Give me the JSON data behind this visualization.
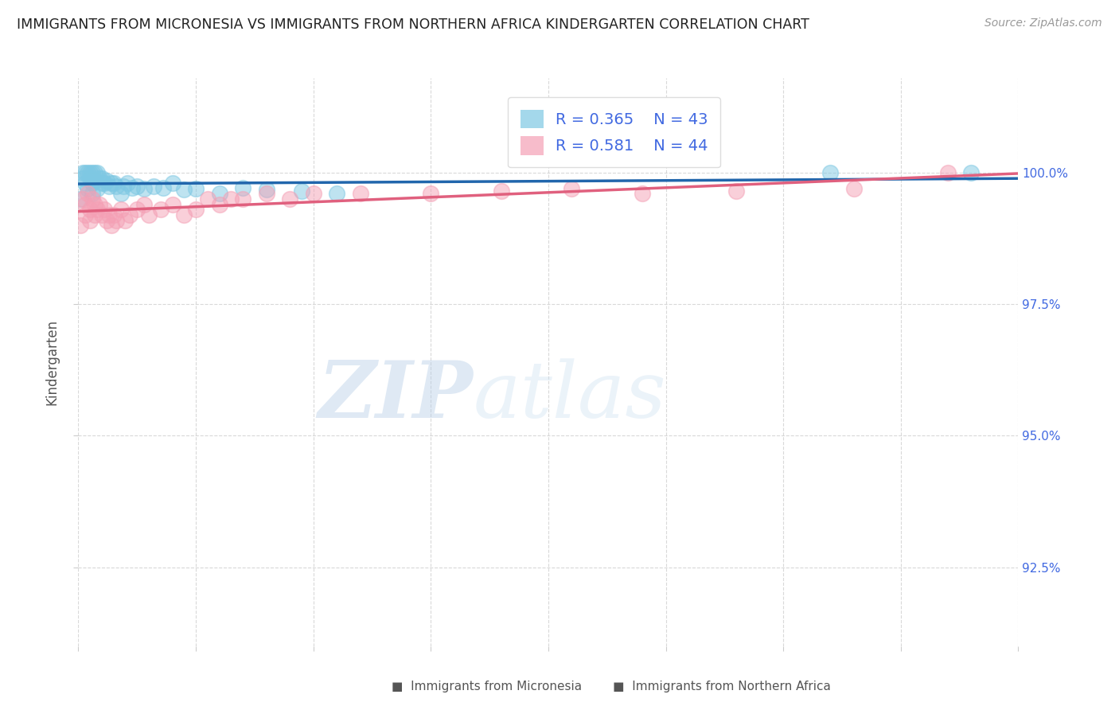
{
  "title": "IMMIGRANTS FROM MICRONESIA VS IMMIGRANTS FROM NORTHERN AFRICA KINDERGARTEN CORRELATION CHART",
  "source": "Source: ZipAtlas.com",
  "ylabel": "Kindergarten",
  "y_tick_labels": [
    "100.0%",
    "97.5%",
    "95.0%",
    "92.5%"
  ],
  "y_tick_values": [
    1.0,
    0.975,
    0.95,
    0.925
  ],
  "x_min": 0.0,
  "x_max": 0.4,
  "y_min": 0.91,
  "y_max": 1.018,
  "r_micronesia": 0.365,
  "n_micronesia": 43,
  "r_n_africa": 0.581,
  "n_n_africa": 44,
  "color_micronesia": "#7ec8e3",
  "color_n_africa": "#f4a0b5",
  "line_color_micronesia": "#2166ac",
  "line_color_n_africa": "#e0607e",
  "legend_label_micronesia": "Immigrants from Micronesia",
  "legend_label_n_africa": "Immigrants from Northern Africa",
  "background_color": "#ffffff",
  "grid_color": "#d0d0d0",
  "right_axis_color": "#4169e1",
  "watermark_zip": "ZIP",
  "watermark_atlas": "atlas",
  "micronesia_x": [
    0.001,
    0.002,
    0.002,
    0.003,
    0.003,
    0.004,
    0.004,
    0.005,
    0.005,
    0.006,
    0.006,
    0.006,
    0.007,
    0.007,
    0.008,
    0.008,
    0.009,
    0.01,
    0.01,
    0.011,
    0.012,
    0.013,
    0.014,
    0.015,
    0.016,
    0.018,
    0.019,
    0.021,
    0.023,
    0.025,
    0.028,
    0.032,
    0.036,
    0.04,
    0.045,
    0.05,
    0.06,
    0.07,
    0.08,
    0.095,
    0.11,
    0.32,
    0.38
  ],
  "micronesia_y": [
    0.995,
    1.0,
    0.999,
    1.0,
    0.998,
    1.0,
    0.997,
    1.0,
    0.999,
    1.0,
    0.998,
    0.996,
    1.0,
    0.9985,
    1.0,
    0.997,
    0.999,
    0.999,
    0.998,
    0.998,
    0.9985,
    0.9975,
    0.998,
    0.998,
    0.9975,
    0.996,
    0.9975,
    0.998,
    0.9972,
    0.9975,
    0.997,
    0.9975,
    0.9972,
    0.998,
    0.9968,
    0.997,
    0.996,
    0.9972,
    0.9968,
    0.9965,
    0.996,
    1.0,
    1.0
  ],
  "n_africa_x": [
    0.001,
    0.002,
    0.003,
    0.003,
    0.004,
    0.005,
    0.005,
    0.006,
    0.007,
    0.007,
    0.008,
    0.009,
    0.01,
    0.011,
    0.012,
    0.013,
    0.014,
    0.015,
    0.016,
    0.018,
    0.02,
    0.022,
    0.025,
    0.028,
    0.03,
    0.035,
    0.04,
    0.045,
    0.05,
    0.055,
    0.06,
    0.065,
    0.07,
    0.08,
    0.09,
    0.1,
    0.12,
    0.15,
    0.18,
    0.21,
    0.24,
    0.28,
    0.33,
    0.37
  ],
  "n_africa_y": [
    0.99,
    0.995,
    0.994,
    0.992,
    0.996,
    0.993,
    0.991,
    0.995,
    0.994,
    0.992,
    0.993,
    0.994,
    0.992,
    0.993,
    0.991,
    0.992,
    0.99,
    0.992,
    0.991,
    0.993,
    0.991,
    0.992,
    0.993,
    0.994,
    0.992,
    0.993,
    0.994,
    0.992,
    0.993,
    0.995,
    0.994,
    0.995,
    0.995,
    0.996,
    0.995,
    0.996,
    0.996,
    0.996,
    0.9965,
    0.997,
    0.996,
    0.9965,
    0.997,
    1.0
  ]
}
